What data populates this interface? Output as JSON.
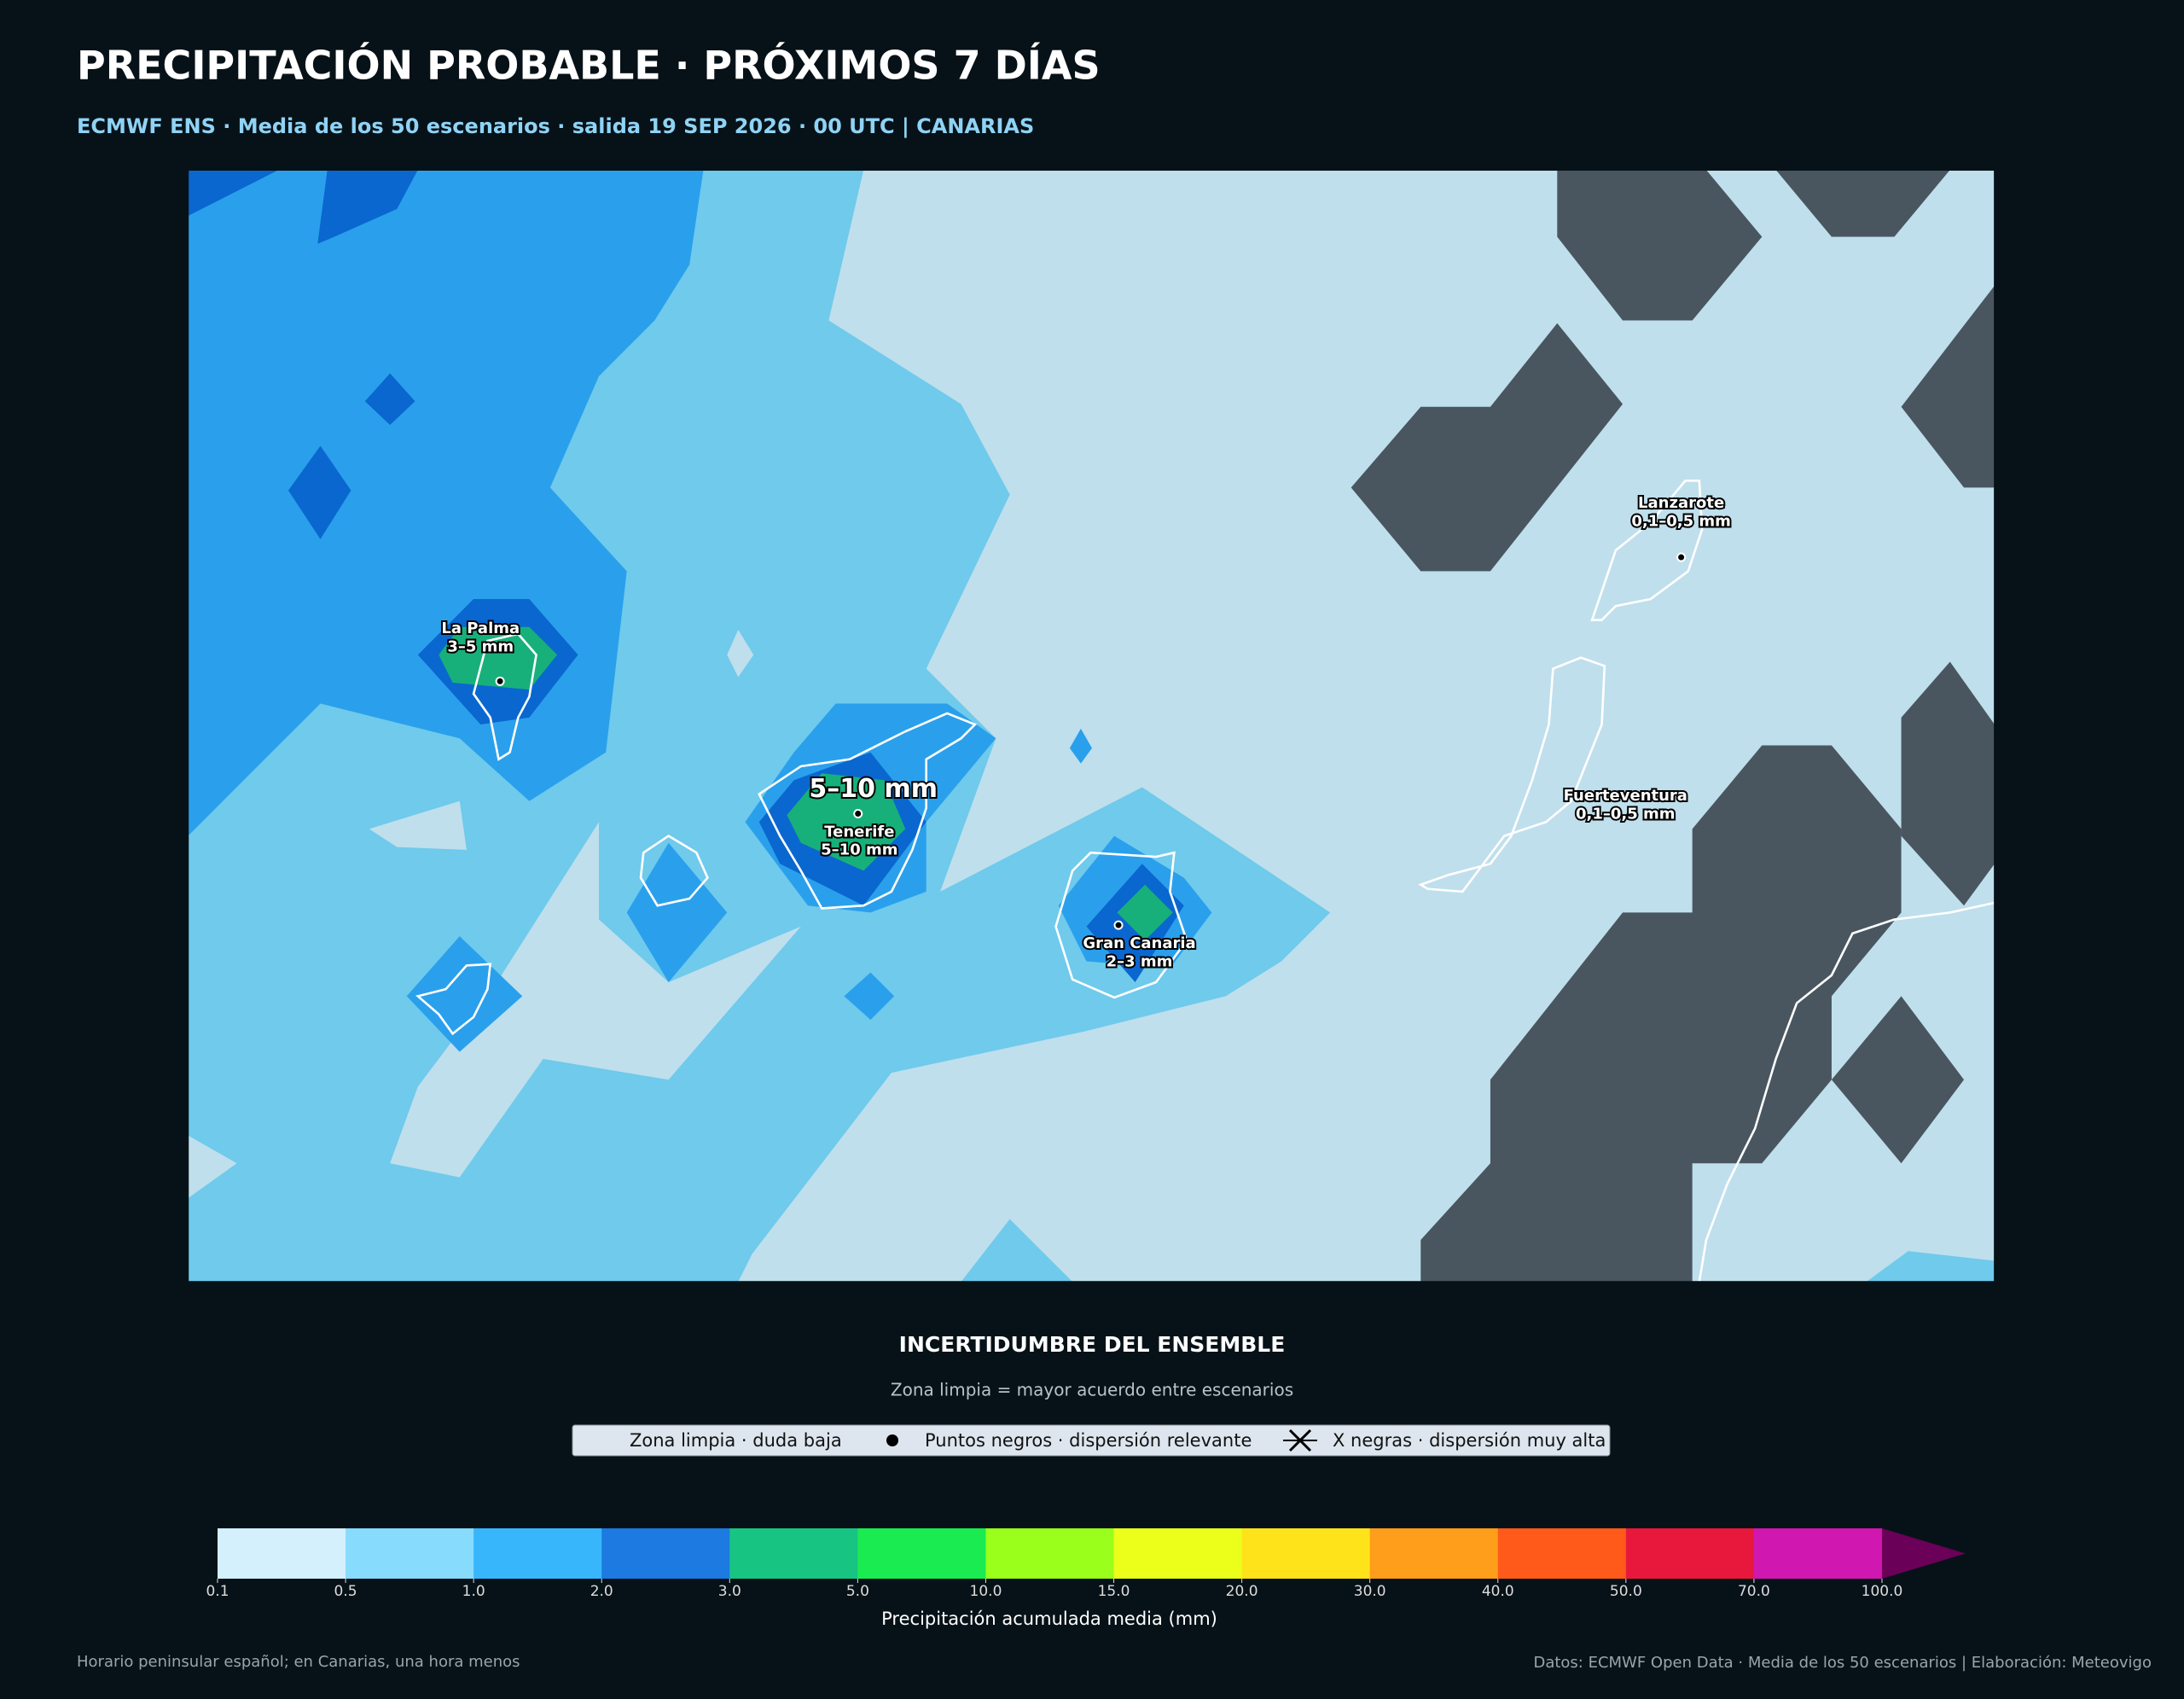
{
  "header": {
    "title": "PRECIPITACIÓN PROBABLE · PRÓXIMOS 7 DÍAS",
    "subtitle": "ECMWF ENS · Media de los 50 escenarios · salida 19 SEP 2026 · 00 UTC | CANARIAS"
  },
  "map": {
    "highlight": "5–10 mm",
    "labels": [
      {
        "name": "La Palma",
        "amount": "3–5 mm"
      },
      {
        "name": "Tenerife",
        "amount": "5–10 mm"
      },
      {
        "name": "Gran Canaria",
        "amount": "2–3 mm"
      },
      {
        "name": "Lanzarote",
        "amount": "0,1–0,5 mm"
      },
      {
        "name": "Fuerteventura",
        "amount": "0,1–0,5 mm"
      }
    ]
  },
  "legend": {
    "title": "INCERTIDUMBRE DEL ENSEMBLE",
    "subtitle": "Zona limpia = mayor acuerdo entre escenarios",
    "entries": [
      "Zona limpia · duda baja",
      "Puntos negros · dispersión relevante",
      "X negras · dispersión muy alta"
    ]
  },
  "colorbar": {
    "ticks": [
      0.1,
      0.5,
      {
        "value": 1,
        "label": "1.0"
      },
      {
        "value": 2,
        "label": "2.0"
      },
      {
        "value": 3,
        "label": "3.0"
      },
      {
        "value": 5,
        "label": "5.0"
      },
      {
        "value": 10,
        "label": "10.0"
      },
      {
        "value": 15,
        "label": "15.0"
      },
      {
        "value": 20,
        "label": "20.0"
      },
      {
        "value": 30,
        "label": "30.0"
      },
      {
        "value": 40,
        "label": "40.0"
      },
      {
        "value": 50,
        "label": "50.0"
      },
      {
        "value": 70,
        "label": "70.0"
      },
      {
        "value": 100,
        "label": "100.0"
      }
    ],
    "colors": [
      "#d4f0fc",
      "#87dbfc",
      "#38b6fc",
      "#1c7ae0",
      "#18c482",
      "#1aeb50",
      "#9aff1a",
      "#ebff1a",
      "#ffe31a",
      "#ff9e1a",
      "#ff5a1a",
      "#e8183c",
      "#d018b0"
    ],
    "extend_color": "#6a0057",
    "label": "Precipitación acumulada media (mm)"
  },
  "footer": {
    "left": "Horario peninsular español; en Canarias, una hora menos",
    "right": "Datos: ECMWF Open Data · Media de los 50 escenarios | Elaboración: Meteovigo"
  }
}
